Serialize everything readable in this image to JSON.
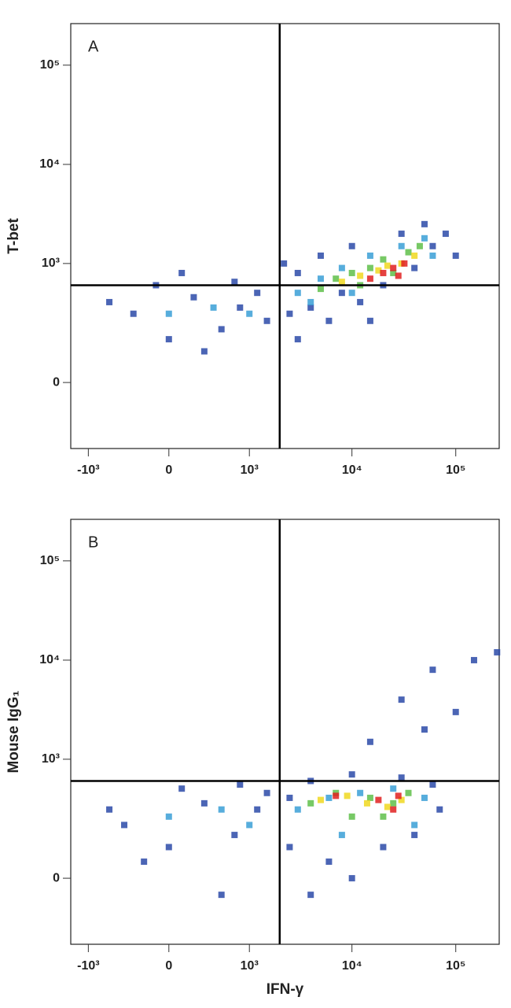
{
  "chart_data": [
    {
      "type": "scatter",
      "title": "A",
      "ylabel": "T-bet",
      "xscale": "biexponential",
      "yscale": "biexponential",
      "xlim": [
        -1500,
        262144
      ],
      "ylim": [
        -280,
        262144
      ],
      "xticks": [
        {
          "value": -1000,
          "label": "-10³"
        },
        0,
        {
          "value": 1000,
          "label": "10³"
        },
        {
          "value": 10000,
          "label": "10⁴"
        },
        {
          "value": 100000,
          "label": "10⁵"
        }
      ],
      "yticks": [
        0,
        {
          "value": 1000,
          "label": "10³"
        },
        {
          "value": 10000,
          "label": "10⁴"
        },
        {
          "value": 100000,
          "label": "10⁵"
        }
      ],
      "quadrant_gates": {
        "x": 2000,
        "y": 600
      },
      "series": [
        {
          "color": "#2b4aa8",
          "x": [
            -300,
            0,
            200,
            500,
            800,
            1200,
            -100,
            300,
            1500,
            2500,
            3000,
            4000,
            6000,
            8000,
            12000,
            20000,
            40000,
            60000,
            80000,
            50000,
            30000,
            10000,
            5000,
            3000,
            2200,
            15000,
            100000,
            -600,
            100,
            700
          ],
          "y": [
            300,
            150,
            450,
            200,
            350,
            500,
            600,
            100,
            250,
            300,
            150,
            350,
            250,
            500,
            400,
            600,
            900,
            1500,
            2000,
            2500,
            2000,
            1500,
            1200,
            800,
            1000,
            250,
            1200,
            400,
            800,
            650
          ]
        },
        {
          "color": "#3a9fd6",
          "x": [
            0,
            400,
            1000,
            3000,
            5000,
            8000,
            15000,
            30000,
            50000,
            60000,
            10000,
            4000
          ],
          "y": [
            300,
            350,
            300,
            500,
            700,
            900,
            1200,
            1500,
            1800,
            1200,
            500,
            400
          ]
        },
        {
          "color": "#5fbf4a",
          "x": [
            5000,
            7000,
            10000,
            15000,
            20000,
            35000,
            45000,
            12000,
            25000
          ],
          "y": [
            550,
            700,
            800,
            900,
            1100,
            1300,
            1500,
            600,
            800
          ]
        },
        {
          "color": "#f0d820",
          "x": [
            8000,
            12000,
            18000,
            30000,
            40000,
            22000
          ],
          "y": [
            650,
            750,
            850,
            1000,
            1200,
            950
          ]
        },
        {
          "color": "#e02020",
          "x": [
            20000,
            25000,
            28000,
            32000,
            15000
          ],
          "y": [
            800,
            900,
            750,
            1000,
            700
          ]
        }
      ]
    },
    {
      "type": "scatter",
      "title": "B",
      "ylabel": "Mouse IgG₁",
      "xlabel": "IFN-γ",
      "xscale": "biexponential",
      "yscale": "biexponential",
      "xlim": [
        -1500,
        262144
      ],
      "ylim": [
        -280,
        262144
      ],
      "xticks": [
        {
          "value": -1000,
          "label": "-10³"
        },
        0,
        {
          "value": 1000,
          "label": "10³"
        },
        {
          "value": 10000,
          "label": "10⁴"
        },
        {
          "value": 100000,
          "label": "10⁵"
        }
      ],
      "yticks": [
        0,
        {
          "value": 1000,
          "label": "10³"
        },
        {
          "value": 10000,
          "label": "10⁴"
        },
        {
          "value": 100000,
          "label": "10⁵"
        }
      ],
      "quadrant_gates": {
        "x": 2000,
        "y": 600
      },
      "series": [
        {
          "color": "#2b4aa8",
          "x": [
            -400,
            0,
            300,
            700,
            1200,
            -200,
            500,
            1500,
            2500,
            4000,
            6000,
            10000,
            20000,
            40000,
            70000,
            60000,
            30000,
            10000,
            4000,
            2500,
            15000,
            30000,
            60000,
            150000,
            250000,
            100000,
            50000,
            -600,
            100,
            800
          ],
          "y": [
            200,
            100,
            350,
            150,
            300,
            50,
            -50,
            450,
            100,
            -50,
            50,
            0,
            100,
            150,
            300,
            550,
            650,
            700,
            600,
            400,
            1500,
            4000,
            8000,
            10000,
            12000,
            3000,
            2000,
            300,
            500,
            550
          ]
        },
        {
          "color": "#3a9fd6",
          "x": [
            0,
            500,
            1000,
            3000,
            6000,
            12000,
            25000,
            50000,
            40000,
            8000
          ],
          "y": [
            250,
            300,
            200,
            300,
            400,
            450,
            500,
            400,
            200,
            150
          ]
        },
        {
          "color": "#5fbf4a",
          "x": [
            4000,
            7000,
            15000,
            25000,
            35000,
            10000,
            20000
          ],
          "y": [
            350,
            450,
            400,
            350,
            450,
            250,
            250
          ]
        },
        {
          "color": "#f0d820",
          "x": [
            5000,
            9000,
            14000,
            22000,
            30000
          ],
          "y": [
            380,
            420,
            350,
            320,
            380
          ]
        },
        {
          "color": "#e02020",
          "x": [
            7000,
            18000,
            25000,
            28000
          ],
          "y": [
            420,
            380,
            300,
            420
          ]
        }
      ]
    }
  ]
}
